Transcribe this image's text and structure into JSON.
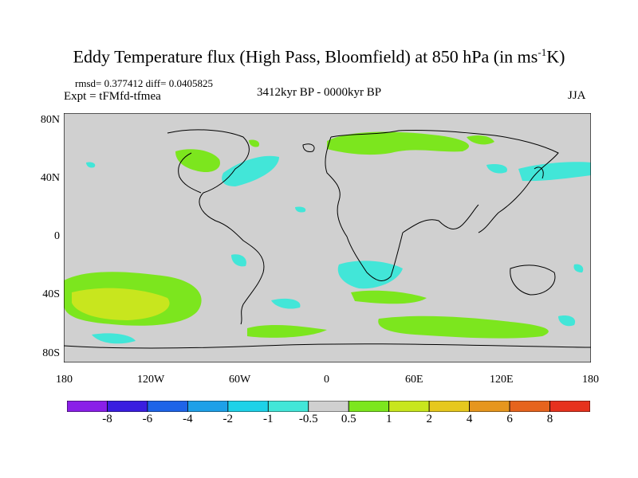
{
  "title": {
    "main": "Eddy Temperature flux (High Pass, Bloomfield) at 850 hPa (in ms",
    "sup": "-1",
    "tail": "K)"
  },
  "stats": "rmsd= 0.377412  diff= 0.0405825",
  "experiment": "Expt = tFMfd-tfmea",
  "period": "3412kyr BP - 0000kyr BP",
  "season": "JJA",
  "map": {
    "background": "#d0d0d0",
    "lat_labels": [
      "80N",
      "40N",
      "0",
      "40S",
      "80S"
    ],
    "lon_labels": [
      "180",
      "120W",
      "60W",
      "0",
      "60E",
      "120E",
      "180"
    ]
  },
  "colorbar": {
    "colors": [
      "#8a1fe8",
      "#3a1ee0",
      "#1e64e8",
      "#1ea0e8",
      "#1ed2e8",
      "#42e6d8",
      "#d0d0d0",
      "#7ce61e",
      "#c8e61e",
      "#e6c81e",
      "#e6961e",
      "#e6641e",
      "#e6321e"
    ],
    "labels": [
      "-8",
      "-6",
      "-4",
      "-2",
      "-1",
      "-0.5",
      "0.5",
      "1",
      "2",
      "4",
      "6",
      "8"
    ]
  }
}
